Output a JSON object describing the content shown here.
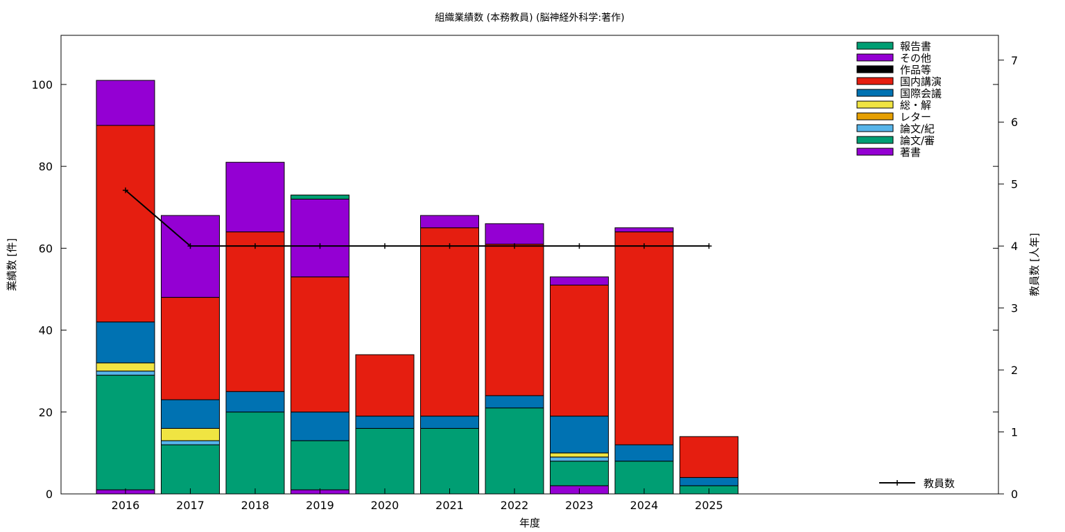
{
  "chart_data": {
    "type": "bar",
    "stacked": true,
    "title": "組織業績数 (本務教員) (脳神経外科学:著作)",
    "xlabel": "年度",
    "ylabel": "業績数 [件]",
    "y2label": "教員数 [人年]",
    "ylim": [
      0,
      112
    ],
    "y2lim": [
      0,
      7.4
    ],
    "yticks": [
      0,
      20,
      40,
      60,
      80,
      100
    ],
    "y2ticks": [
      0,
      1,
      2,
      3,
      4,
      5,
      6,
      7
    ],
    "categories": [
      "2016",
      "2017",
      "2018",
      "2019",
      "2020",
      "2021",
      "2022",
      "2023",
      "2024",
      "2025"
    ],
    "legend_placement": "top-right",
    "series": [
      {
        "name": "著書",
        "color": "#9400d3",
        "values": [
          1,
          0,
          0,
          1,
          0,
          0,
          0,
          2,
          0,
          0
        ]
      },
      {
        "name": "論文/審",
        "color": "#009e73",
        "values": [
          28,
          12,
          20,
          12,
          16,
          16,
          21,
          6,
          8,
          2
        ]
      },
      {
        "name": "論文/紀",
        "color": "#56b4e9",
        "values": [
          1,
          1,
          0,
          0,
          0,
          0,
          0,
          1,
          0,
          0
        ]
      },
      {
        "name": "レター",
        "color": "#e69f00",
        "values": [
          0,
          0,
          0,
          0,
          0,
          0,
          0,
          0,
          0,
          0
        ]
      },
      {
        "name": "総・解",
        "color": "#f0e442",
        "values": [
          2,
          3,
          0,
          0,
          0,
          0,
          0,
          1,
          0,
          0
        ]
      },
      {
        "name": "国際会議",
        "color": "#0072b2",
        "values": [
          10,
          7,
          5,
          7,
          3,
          3,
          3,
          9,
          4,
          2
        ]
      },
      {
        "name": "国内講演",
        "color": "#e51e10",
        "values": [
          48,
          25,
          39,
          33,
          15,
          46,
          37,
          32,
          52,
          10
        ]
      },
      {
        "name": "作品等",
        "color": "#000000",
        "values": [
          0,
          0,
          0,
          0,
          0,
          0,
          0,
          0,
          0,
          0
        ]
      },
      {
        "name": "その他",
        "color": "#9400d3",
        "values": [
          11,
          20,
          17,
          19,
          0,
          3,
          5,
          2,
          1,
          0
        ]
      },
      {
        "name": "報告書",
        "color": "#009e73",
        "values": [
          0,
          0,
          0,
          1,
          0,
          0,
          0,
          0,
          0,
          0
        ]
      }
    ],
    "line_series": {
      "name": "教員数",
      "axis": "right",
      "color": "#000000",
      "values": [
        4.9,
        4,
        4,
        4,
        4,
        4,
        4,
        4,
        4,
        4
      ]
    }
  }
}
